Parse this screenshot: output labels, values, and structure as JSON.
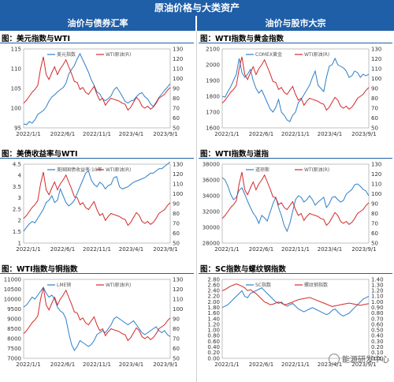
{
  "banner": "原油价格与大类资产",
  "headers": {
    "left": "油价与债券汇率",
    "right": "油价与股市大宗"
  },
  "watermark": "能源研发中心",
  "colors": {
    "blue": "#2e7fc8",
    "red": "#d42a2a",
    "header": "#1f5fa8"
  },
  "chart_data": [
    {
      "type": "line",
      "title": "图：美元指数与WTI",
      "x_ticks": [
        "2022/1/1",
        "2022/6/1",
        "2022/11/1",
        "2023/4/1",
        "2023/9/1"
      ],
      "y_left_ticks": [
        "95",
        "100",
        "105",
        "110",
        "115"
      ],
      "y_left_lim": [
        95,
        115
      ],
      "y_right_ticks": [
        "50",
        "60",
        "70",
        "80",
        "90",
        "100",
        "110",
        "120",
        "130"
      ],
      "y_right_lim": [
        50,
        130
      ],
      "series": [
        {
          "name": "美元指数",
          "axis": "left",
          "color": "#2e7fc8",
          "values": [
            96.0,
            95.8,
            96.6,
            96.2,
            97.0,
            98.4,
            98.9,
            99.4,
            100.3,
            101.8,
            102.8,
            103.4,
            104.1,
            104.7,
            105.2,
            106.3,
            108.6,
            109.8,
            110.8,
            112.5,
            113.8,
            112.2,
            110.7,
            109.1,
            107.2,
            105.8,
            104.1,
            103.6,
            102.3,
            101.9,
            102.4,
            103.1,
            104.6,
            105.3,
            104.2,
            103.0,
            101.7,
            101.3,
            101.8,
            102.0,
            102.9,
            103.6,
            103.9,
            102.9,
            102.3,
            101.1,
            100.4,
            101.5,
            102.7,
            103.6,
            104.5,
            105.3,
            106.2
          ]
        },
        {
          "name": "WTI原油(R)",
          "axis": "right",
          "color": "#d42a2a",
          "values": [
            75,
            78,
            82,
            86,
            89,
            93,
            110,
            122,
            104,
            99,
            106,
            112,
            104,
            110,
            114,
            119,
            112,
            105,
            97,
            96,
            89,
            91,
            86,
            84,
            88,
            92,
            84,
            78,
            80,
            73,
            77,
            80,
            79,
            78,
            77,
            75,
            74,
            68,
            71,
            76,
            81,
            78,
            72,
            70,
            72,
            69,
            71,
            75,
            80,
            82,
            84,
            88,
            91
          ]
        }
      ]
    },
    {
      "type": "line",
      "title": "图：WTI指数与黄金指数",
      "x_ticks": [
        "2022/1/1",
        "2022/6/1",
        "2022/11/1",
        "2023/4/1",
        "2023/9/1"
      ],
      "y_left_ticks": [
        "1600",
        "1700",
        "1800",
        "1900",
        "2000",
        "2100"
      ],
      "y_left_lim": [
        1600,
        2100
      ],
      "y_right_ticks": [
        "50",
        "60",
        "70",
        "80",
        "90",
        "100",
        "110",
        "120",
        "130"
      ],
      "y_right_lim": [
        50,
        130
      ],
      "series": [
        {
          "name": "COMEX黄金",
          "axis": "left",
          "color": "#2e7fc8",
          "values": [
            1800,
            1795,
            1830,
            1860,
            1900,
            1940,
            2040,
            1950,
            1920,
            1940,
            1970,
            1900,
            1850,
            1820,
            1840,
            1800,
            1760,
            1720,
            1700,
            1730,
            1780,
            1700,
            1680,
            1650,
            1640,
            1680,
            1700,
            1760,
            1780,
            1810,
            1840,
            1870,
            1920,
            1960,
            1870,
            1850,
            1830,
            1920,
            1990,
            2000,
            2040,
            2000,
            1990,
            1980,
            1960,
            1920,
            1930,
            1960,
            1950,
            1920,
            1940,
            1930,
            1940
          ]
        },
        {
          "name": "WTI原油(R)",
          "axis": "right",
          "color": "#d42a2a",
          "values": [
            75,
            78,
            82,
            86,
            89,
            93,
            110,
            122,
            104,
            99,
            106,
            112,
            104,
            110,
            114,
            119,
            112,
            105,
            97,
            96,
            89,
            91,
            86,
            84,
            88,
            92,
            84,
            78,
            80,
            73,
            77,
            80,
            79,
            78,
            77,
            75,
            74,
            68,
            71,
            76,
            81,
            78,
            72,
            70,
            72,
            69,
            71,
            75,
            80,
            82,
            84,
            88,
            91
          ]
        }
      ]
    },
    {
      "type": "line",
      "title": "图：美债收益率与WTI",
      "x_ticks": [
        "2022/1/1",
        "2022/6/1",
        "2022/11/1",
        "2023/4/1",
        "2023/9/1"
      ],
      "y_left_ticks": [
        "1",
        "1.5",
        "2",
        "2.5",
        "3",
        "3.5",
        "4",
        "4.5"
      ],
      "y_left_lim": [
        1,
        4.5
      ],
      "y_right_ticks": [
        "50",
        "60",
        "70",
        "80",
        "90",
        "100",
        "110",
        "120",
        "130"
      ],
      "y_right_lim": [
        50,
        130
      ],
      "series": [
        {
          "name": "美国国债收益率:10年",
          "axis": "left",
          "color": "#2e7fc8",
          "values": [
            1.52,
            1.7,
            1.85,
            1.96,
            1.9,
            2.1,
            2.3,
            2.5,
            2.8,
            2.9,
            3.1,
            2.8,
            2.9,
            3.4,
            3.1,
            2.8,
            2.65,
            2.75,
            2.9,
            3.2,
            3.5,
            3.8,
            4.1,
            4.2,
            3.8,
            3.6,
            3.5,
            3.7,
            3.6,
            3.4,
            3.55,
            3.6,
            3.9,
            3.95,
            3.5,
            3.4,
            3.45,
            3.5,
            3.6,
            3.7,
            3.75,
            3.8,
            3.85,
            3.9,
            4.0,
            4.1,
            4.1,
            4.2,
            4.3,
            4.3,
            4.4,
            4.5,
            4.6
          ]
        },
        {
          "name": "WTI原油(R)",
          "axis": "right",
          "color": "#d42a2a",
          "values": [
            75,
            78,
            82,
            86,
            89,
            93,
            110,
            122,
            104,
            99,
            106,
            112,
            104,
            110,
            114,
            119,
            112,
            105,
            97,
            96,
            89,
            91,
            86,
            84,
            88,
            92,
            84,
            78,
            80,
            73,
            77,
            80,
            79,
            78,
            77,
            75,
            74,
            68,
            71,
            76,
            81,
            78,
            72,
            70,
            72,
            69,
            71,
            75,
            80,
            82,
            84,
            88,
            91
          ]
        }
      ]
    },
    {
      "type": "line",
      "title": "图：WTI指数与道指",
      "x_ticks": [
        "2022/1/1",
        "2022/6/1",
        "2022/11/1",
        "2023/4/1",
        "2023/9/1"
      ],
      "y_left_ticks": [
        "28000",
        "30000",
        "32000",
        "34000",
        "36000",
        "38000"
      ],
      "y_left_lim": [
        28000,
        38000
      ],
      "y_right_ticks": [
        "50",
        "60",
        "70",
        "80",
        "90",
        "100",
        "110",
        "120",
        "130"
      ],
      "y_right_lim": [
        50,
        130
      ],
      "series": [
        {
          "name": "道琼斯",
          "axis": "right_left_placeholder_never_used",
          "color": "#2e7fc8",
          "values": [
            36300,
            36000,
            35200,
            34200,
            33500,
            33800,
            34700,
            35000,
            34200,
            33300,
            32500,
            31800,
            31300,
            30500,
            31500,
            31200,
            30800,
            31900,
            33000,
            33800,
            32500,
            31500,
            30200,
            29500,
            30500,
            32000,
            33500,
            34000,
            33800,
            33200,
            33500,
            34000,
            33500,
            32800,
            33200,
            33500,
            33800,
            32500,
            33000,
            33800,
            33900,
            33500,
            33200,
            33400,
            34200,
            34500,
            34800,
            35400,
            35500,
            35200,
            34800,
            34600,
            34000
          ]
        },
        {
          "name": "WTI原油(R)",
          "axis": "right",
          "color": "#d42a2a",
          "values": [
            75,
            78,
            82,
            86,
            89,
            93,
            110,
            122,
            104,
            99,
            106,
            112,
            104,
            110,
            114,
            119,
            112,
            105,
            97,
            96,
            89,
            91,
            86,
            84,
            88,
            92,
            84,
            78,
            80,
            73,
            77,
            80,
            79,
            78,
            77,
            75,
            74,
            68,
            71,
            76,
            81,
            78,
            72,
            70,
            72,
            69,
            71,
            75,
            80,
            82,
            84,
            88,
            91
          ]
        }
      ]
    },
    {
      "type": "line",
      "title": "图：WTI指数与铜指数",
      "x_ticks": [
        "2022/1/1",
        "2022/6/1",
        "2022/11/1",
        "2023/4/1",
        "2023/9/1"
      ],
      "y_left_ticks": [
        "7000",
        "7500",
        "8000",
        "8500",
        "9000",
        "9500",
        "10000",
        "10500",
        "11000"
      ],
      "y_left_lim": [
        7000,
        11000
      ],
      "y_right_ticks": [
        "50",
        "60",
        "70",
        "80",
        "90",
        "100",
        "110",
        "120",
        "130"
      ],
      "y_right_lim": [
        50,
        130
      ],
      "series": [
        {
          "name": "LME铜",
          "axis": "left",
          "color": "#2e7fc8",
          "values": [
            9600,
            9700,
            9900,
            10100,
            10000,
            10200,
            10400,
            10600,
            10300,
            10100,
            10200,
            10000,
            9600,
            9400,
            9300,
            9000,
            8300,
            7700,
            7400,
            7600,
            7900,
            7800,
            7700,
            7600,
            7700,
            7900,
            8200,
            8300,
            8400,
            8300,
            8500,
            8700,
            9000,
            9100,
            9000,
            8900,
            8800,
            8700,
            8800,
            8900,
            8700,
            8500,
            8300,
            8200,
            8300,
            8400,
            8500,
            8600,
            8400,
            8300,
            8400,
            8200,
            8100
          ]
        },
        {
          "name": "WTI原油(R)",
          "axis": "right",
          "color": "#d42a2a",
          "values": [
            75,
            78,
            82,
            86,
            89,
            93,
            110,
            122,
            104,
            99,
            106,
            112,
            104,
            110,
            114,
            119,
            112,
            105,
            97,
            96,
            89,
            91,
            86,
            84,
            88,
            92,
            84,
            78,
            80,
            73,
            77,
            80,
            79,
            78,
            77,
            75,
            74,
            68,
            71,
            76,
            81,
            78,
            72,
            70,
            72,
            69,
            71,
            75,
            80,
            82,
            84,
            88,
            91
          ]
        }
      ]
    },
    {
      "type": "line",
      "title": "图：SC指数与螺纹钢指数",
      "x_ticks": [
        "2022/1/1",
        "2022/6/1",
        "2022/11/1",
        "2023/4/1",
        "2023/9/1"
      ],
      "y_left_ticks": [
        "0.00",
        "0.20",
        "0.40",
        "0.60",
        "0.80",
        "1.00",
        "1.20",
        "1.40",
        "1.60",
        "1.80",
        "2.00",
        "2.20",
        "2.40",
        "2.60",
        "2.80"
      ],
      "y_left_lim": [
        0.0,
        2.8
      ],
      "y_right_ticks": [
        "0.00",
        "0.10",
        "0.20",
        "0.30",
        "0.40",
        "0.50",
        "0.60",
        "0.70",
        "0.80",
        "0.90",
        "1.00",
        "1.10",
        "1.20",
        "1.30",
        "1.40"
      ],
      "y_right_lim": [
        0.0,
        1.4
      ],
      "series": [
        {
          "name": "SC指数",
          "axis": "left",
          "color": "#2e7fc8",
          "values": [
            1.8,
            1.85,
            1.9,
            2.0,
            2.1,
            2.2,
            2.3,
            2.4,
            2.2,
            2.15,
            2.3,
            2.35,
            2.4,
            2.45,
            2.5,
            2.4,
            2.3,
            2.2,
            2.1,
            2.0,
            1.95,
            2.0,
            1.9,
            1.85,
            1.9,
            1.95,
            1.85,
            1.75,
            1.7,
            1.65,
            1.7,
            1.75,
            1.8,
            1.75,
            1.7,
            1.65,
            1.6,
            1.55,
            1.6,
            1.7,
            1.75,
            1.65,
            1.55,
            1.5,
            1.55,
            1.6,
            1.7,
            1.8,
            1.9,
            2.0,
            2.1,
            2.15,
            2.2
          ]
        },
        {
          "name": "螺纹钢指数",
          "axis": "right",
          "color": "#d42a2a",
          "values": [
            1.2,
            1.22,
            1.25,
            1.28,
            1.3,
            1.32,
            1.3,
            1.28,
            1.25,
            1.2,
            1.22,
            1.18,
            1.15,
            1.1,
            1.05,
            1.0,
            0.98,
            0.95,
            0.96,
            0.98,
            1.0,
            0.98,
            0.95,
            0.96,
            0.98,
            1.0,
            1.02,
            1.04,
            1.05,
            1.06,
            1.07,
            1.08,
            1.06,
            1.04,
            1.02,
            1.0,
            0.98,
            0.96,
            0.94,
            0.92,
            0.93,
            0.94,
            0.95,
            0.96,
            0.97,
            0.98,
            0.97,
            0.96,
            0.95,
            0.94,
            0.95,
            0.96,
            0.97
          ]
        }
      ]
    }
  ]
}
